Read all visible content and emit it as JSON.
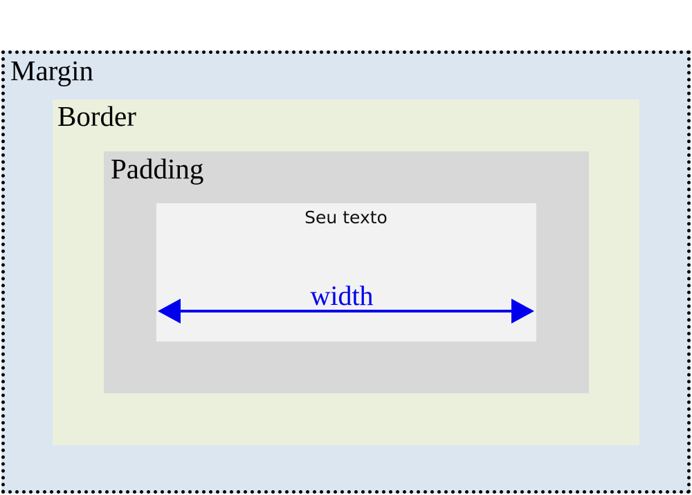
{
  "layers": {
    "margin": {
      "label": "Margin",
      "color": "#dce6f1",
      "outline": "dotted"
    },
    "border": {
      "label": "Border",
      "color": "#ebf0dc"
    },
    "padding": {
      "label": "Padding",
      "color": "#d8d8d8"
    },
    "content": {
      "text": "Seu texto",
      "color": "#f2f2f2"
    }
  },
  "width_indicator": {
    "label": "width",
    "color": "#0000ee",
    "style": "double-headed-arrow"
  }
}
